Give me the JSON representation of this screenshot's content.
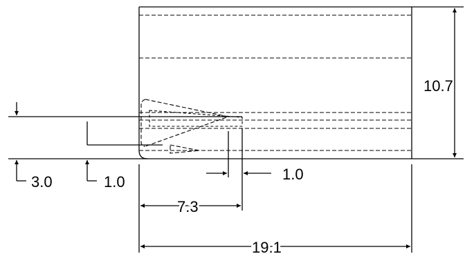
{
  "drawing": {
    "dimensions": {
      "height": "10.7",
      "length": "19.1",
      "insertion_depth": "7.3",
      "offset_a": "3.0",
      "offset_b": "1.0",
      "gap": "1.0"
    }
  }
}
